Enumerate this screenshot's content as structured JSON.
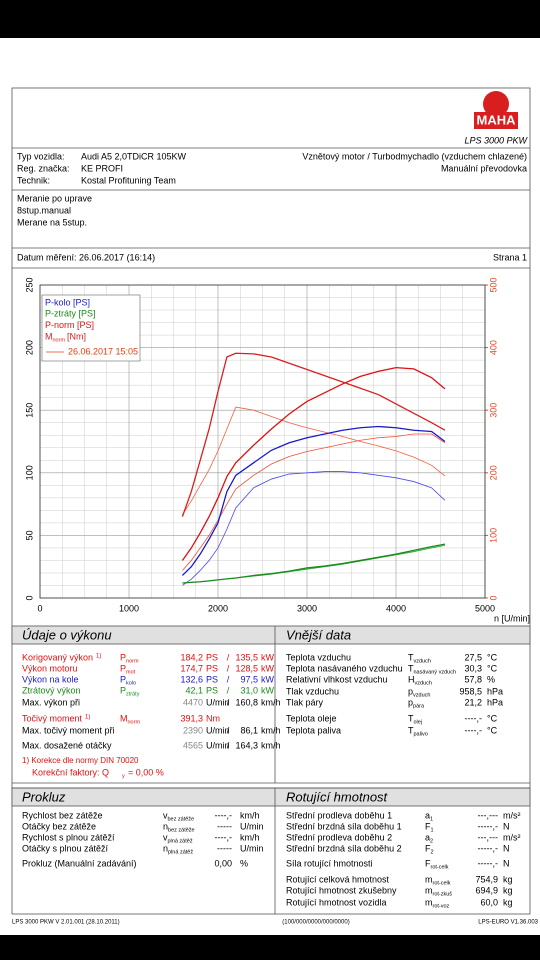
{
  "header": {
    "logo": "MAHA",
    "product": "LPS 3000 PKW"
  },
  "vehicle": {
    "rows": [
      {
        "label": "Typ vozidla:",
        "value": "Audi A5 2,0TDiCR 105KW"
      },
      {
        "label": "Reg. značka:",
        "value": "KE PROFI"
      },
      {
        "label": "Technik:",
        "value": "Kostal Profituning Team"
      }
    ],
    "engine": "Vznětový motor / Turbodmychadlo (vzduchem chlazené)",
    "gearbox": "Manuální převodovka"
  },
  "notes": [
    "Meranie po uprave",
    "8stup.manual",
    "Merane na 5stup."
  ],
  "date": "Datum měření: 26.06.2017 (16:14)",
  "page": "Strana 1",
  "chart_data": {
    "type": "line",
    "xlabel": "n [U/min]",
    "grid": true,
    "x": [
      1600,
      1700,
      1800,
      1900,
      2000,
      2100,
      2200,
      2400,
      2600,
      2800,
      3000,
      3200,
      3400,
      3600,
      3800,
      4000,
      4200,
      4400,
      4550
    ],
    "xlim": [
      0,
      5000
    ],
    "xticks": [
      0,
      1000,
      2000,
      3000,
      4000,
      5000
    ],
    "ylim": [
      0,
      250
    ],
    "yticks": [
      0,
      50,
      100,
      150,
      200,
      250
    ],
    "y2lim": [
      0,
      500
    ],
    "y2ticks": [
      0,
      100,
      200,
      300,
      400,
      500
    ],
    "y2_color": "#e04a2a",
    "series": [
      {
        "name": "P-kolo [PS]",
        "color": "#1a1acc",
        "values": [
          18,
          25,
          35,
          47,
          60,
          85,
          98,
          108,
          118,
          124,
          128,
          131,
          134,
          136,
          137,
          136,
          134,
          133,
          125
        ]
      },
      {
        "name": "P-ztráty [PS]",
        "color": "#1a8a1a",
        "values": [
          12,
          12.5,
          13,
          13.7,
          14.5,
          15.3,
          16,
          18,
          19.5,
          21.5,
          24,
          25.5,
          27.5,
          30,
          32.5,
          35,
          38,
          41,
          43
        ]
      },
      {
        "name": "P-norm [PS]",
        "color": "#e01010",
        "values": [
          30,
          40,
          52,
          65,
          80,
          97,
          108,
          122,
          135,
          147,
          157,
          164,
          171,
          177,
          181,
          184,
          183,
          176,
          167
        ]
      },
      {
        "name": "M",
        "name_sub": "norm",
        "name_suffix": "[Nm]",
        "color": "#d82020",
        "axis": "y2",
        "values": [
          130,
          170,
          220,
          270,
          330,
          385,
          391,
          390,
          385,
          375,
          365,
          355,
          345,
          335,
          325,
          310,
          295,
          280,
          268
        ]
      }
    ],
    "comparison": {
      "label": "26.06.2017 15:05",
      "color": "#e04010",
      "series": [
        {
          "color": "#4a4aee",
          "values": [
            10,
            15,
            22,
            30,
            40,
            55,
            72,
            88,
            95,
            99,
            100,
            101,
            101,
            100,
            98,
            96,
            93,
            88,
            78
          ]
        },
        {
          "color": "#2aaa2a",
          "values": [
            12,
            12.5,
            13,
            13.7,
            14.5,
            15.3,
            16,
            17.5,
            19,
            21,
            23,
            25,
            27,
            29.5,
            32,
            34.5,
            37,
            40,
            42
          ]
        },
        {
          "color": "#f05030",
          "values": [
            22,
            30,
            40,
            50,
            62,
            75,
            87,
            98,
            107,
            113,
            117,
            120,
            123,
            126,
            128,
            129,
            131,
            131,
            124
          ]
        },
        {
          "color": "#f06040",
          "axis": "y2",
          "values": [
            133,
            155,
            180,
            205,
            235,
            270,
            305,
            300,
            290,
            280,
            272,
            265,
            258,
            250,
            243,
            235,
            225,
            212,
            195
          ]
        }
      ]
    }
  },
  "performance": {
    "title": "Údaje o výkonu",
    "rows": [
      {
        "label": "Korigovaný výkon",
        "note": "1)",
        "color": "#e01010",
        "symbol": "P",
        "sub": "norm",
        "values": [
          "184,2",
          "PS",
          "/",
          "135,5",
          "kW"
        ]
      },
      {
        "label": "Výkon motoru",
        "color": "#e01010",
        "symbol": "P",
        "sub": "mot",
        "values": [
          "174,7",
          "PS",
          "/",
          "128,5",
          "kW"
        ]
      },
      {
        "label": "Výkon na kole",
        "color": "#1a1acc",
        "symbol": "P",
        "sub": "kolo",
        "values": [
          "132,6",
          "PS",
          "/",
          "97,5",
          "kW"
        ]
      },
      {
        "label": "Ztrátový výkon",
        "color": "#1a8a1a",
        "symbol": "P",
        "sub": "ztráty",
        "values": [
          "42,1",
          "PS",
          "/",
          "31,0",
          "kW"
        ]
      },
      {
        "label": "Max. výkon při",
        "color": "#000000",
        "value_color": "#888888",
        "values": [
          "4470",
          "U/min",
          "/",
          "160,8",
          "km/h"
        ]
      },
      {
        "label": "Točivý moment",
        "note": "1)",
        "color": "#e01010",
        "symbol": "M",
        "sub": "norm",
        "values": [
          "391,3",
          "Nm"
        ]
      },
      {
        "label": "Max. točivý moment při",
        "color": "#000000",
        "value_color": "#888888",
        "values": [
          "2390",
          "U/min",
          "/",
          "86,1",
          "km/h"
        ]
      },
      {
        "label": "Max. dosažené otáčky",
        "color": "#000000",
        "value_color": "#888888",
        "values": [
          "4565",
          "U/min",
          "/",
          "164,3",
          "km/h"
        ]
      }
    ],
    "correction": "1) Korekce dle normy DIN 70020",
    "factor": "Korekční faktory: Q",
    "factor_sub": "y",
    "factor_value": "=  0,00 %"
  },
  "external": {
    "title": "Vnější data",
    "rows": [
      {
        "label": "Teplota vzduchu",
        "symbol": "T",
        "sub": "vzduch",
        "value": "27,5",
        "unit": "°C"
      },
      {
        "label": "Teplota nasávaného vzduchu",
        "symbol": "T",
        "sub": "nasávaný vzduch",
        "value": "30,3",
        "unit": "°C"
      },
      {
        "label": "Relativní vlhkost vzduchu",
        "symbol": "H",
        "sub": "vzduch",
        "value": "57,8",
        "unit": "%"
      },
      {
        "label": "Tlak vzduchu",
        "symbol": "p",
        "sub": "vzduch",
        "value": "958,5",
        "unit": "hPa"
      },
      {
        "label": "Tlak páry",
        "symbol": "p",
        "sub": "pára",
        "value": "21,2",
        "unit": "hPa"
      },
      {
        "label": "Teplota oleje",
        "symbol": "T",
        "sub": "olej",
        "value": "----,-",
        "unit": "°C"
      },
      {
        "label": "Teplota paliva",
        "symbol": "T",
        "sub": "palivo",
        "value": "----,-",
        "unit": "°C"
      }
    ]
  },
  "slip": {
    "title": "Prokluz",
    "rows": [
      {
        "label": "Rychlost bez zátěže",
        "symbol": "v",
        "sub": "bez zátěže",
        "value": "----,-",
        "unit": "km/h"
      },
      {
        "label": "Otáčky bez zátěže",
        "symbol": "n",
        "sub": "bez zátěže",
        "value": "-----",
        "unit": "U/min"
      },
      {
        "label": "Rychlost s plnou zátěží",
        "symbol": "v",
        "sub": "plná zátěž",
        "value": "----,-",
        "unit": "km/h"
      },
      {
        "label": "Otáčky s plnou zátěží",
        "symbol": "n",
        "sub": "plná zátěž",
        "value": "-----",
        "unit": "U/min"
      },
      {
        "label": "Prokluz (Manuální zadávání)",
        "value": "0,00",
        "unit": "%"
      }
    ]
  },
  "rotating": {
    "title": "Rotující hmotnost",
    "rows": [
      {
        "label": "Střední prodleva doběhu 1",
        "symbol": "a",
        "sub": "1",
        "value": "---,---",
        "unit": "m/s²"
      },
      {
        "label": "Střední brzdná síla doběhu 1",
        "symbol": "F",
        "sub": "1",
        "value": "-----,-",
        "unit": "N"
      },
      {
        "label": "Střední prodleva doběhu 2",
        "symbol": "a",
        "sub": "2",
        "value": "---,---",
        "unit": "m/s²"
      },
      {
        "label": "Střední brzdná síla doběhu 2",
        "symbol": "F",
        "sub": "2",
        "value": "-----,-",
        "unit": "N"
      },
      {
        "label": "Síla rotující hmotnosti",
        "symbol": "F",
        "sub": "rot-celk",
        "value": "-----,-",
        "unit": "N"
      },
      {
        "label": "Rotující celková hmotnost",
        "symbol": "m",
        "sub": "rot-celk",
        "value": "754,9",
        "unit": "kg"
      },
      {
        "label": "Rotující hmotnost zkušebny",
        "symbol": "m",
        "sub": "rot-zkuš",
        "value": "694,9",
        "unit": "kg"
      },
      {
        "label": "Rotující hmotnost vozidla",
        "symbol": "m",
        "sub": "rot-voz",
        "value": "60,0",
        "unit": "kg"
      }
    ]
  },
  "footer": {
    "left": "LPS 3000 PKW V 2.01.001 (28.10.2011)",
    "center": "(100/000/0000/000/0000)",
    "right": "LPS-EURO V1.36.003"
  }
}
